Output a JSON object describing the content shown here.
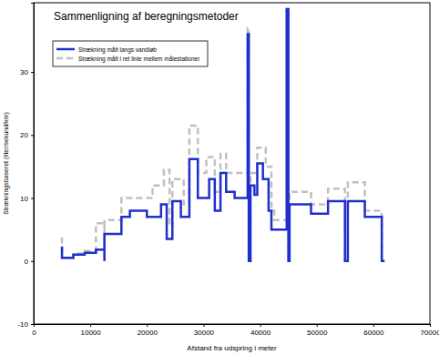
{
  "chart_data": {
    "type": "line",
    "title": "Sammenligning af beregningsmetoder",
    "x_label": "Afstand fra udspring i meter",
    "y_label": "Strækningsbaseret (liter/sekund/km)",
    "xlim": [
      0,
      70000
    ],
    "xticks": [
      0,
      10000,
      20000,
      30000,
      40000,
      50000,
      60000,
      70000
    ],
    "ylim": [
      -10,
      41
    ],
    "yticks": [
      -10,
      0,
      10,
      20,
      30
    ],
    "grid": false,
    "legend": "upper left",
    "series": [
      {
        "name": "Strækning målt langs vandløb",
        "color": "#1f2fcc",
        "line_style": "solid",
        "x": [
          5000,
          5000,
          7000,
          7000,
          9000,
          9000,
          11000,
          11000,
          12500,
          12500,
          12500,
          15500,
          15500,
          17000,
          17000,
          20000,
          20000,
          22500,
          22500,
          23500,
          23500,
          24500,
          24500,
          26000,
          26000,
          27500,
          27500,
          29000,
          29000,
          31000,
          31000,
          32000,
          32000,
          33000,
          33000,
          34000,
          34000,
          35500,
          35500,
          37800,
          37800,
          38000,
          38000,
          38300,
          38300,
          39000,
          39000,
          39500,
          39500,
          40500,
          40500,
          41500,
          41500,
          42000,
          42000,
          44700,
          44700,
          45000,
          45000,
          45200,
          45200,
          49000,
          49000,
          52000,
          52000,
          55000,
          55000,
          55500,
          55500,
          58500,
          58500,
          61500,
          61500,
          62000
        ],
        "values": [
          2.3,
          0.5,
          0.5,
          1.0,
          1.0,
          1.3,
          1.3,
          1.8,
          1.8,
          0,
          4.3,
          4.3,
          7,
          7,
          8,
          8,
          7,
          7,
          9,
          9,
          3.5,
          3.5,
          9.5,
          9.5,
          7,
          7,
          16.2,
          16.2,
          10,
          10,
          13,
          13,
          8,
          8,
          14,
          14,
          11,
          11,
          10,
          10,
          36,
          36,
          0,
          0,
          12,
          12,
          10.5,
          10.5,
          15.5,
          15.5,
          13,
          13,
          8,
          8,
          5,
          5,
          40,
          40,
          0,
          0,
          9,
          9,
          7.5,
          7.5,
          9.5,
          9.5,
          0,
          0,
          9.5,
          9.5,
          7,
          7,
          0,
          0
        ]
      },
      {
        "name": "Strækning målt i ret linie mellem målestationer",
        "color": "#c0c0c0",
        "line_style": "dashed",
        "x": [
          5000,
          5000,
          7000,
          7000,
          9000,
          9000,
          11000,
          11000,
          12500,
          12500,
          12500,
          15500,
          15500,
          21000,
          21000,
          23000,
          23000,
          24000,
          24000,
          24500,
          24500,
          26500,
          26500,
          27500,
          27500,
          29000,
          29000,
          30500,
          30500,
          32000,
          32000,
          33000,
          33000,
          34000,
          34000,
          37800,
          37800,
          38000,
          38000,
          38300,
          38300,
          39500,
          39500,
          41000,
          41000,
          42000,
          42000,
          42500,
          42500,
          44700,
          44700,
          45000,
          45000,
          45200,
          45200,
          49000,
          49000,
          52000,
          52000,
          55000,
          55000,
          55500,
          55500,
          58500,
          58500,
          61500,
          61500,
          62000
        ],
        "values": [
          3.8,
          0.5,
          0.5,
          1.2,
          1.2,
          1.6,
          1.6,
          6,
          6,
          0,
          6.5,
          6.5,
          10,
          10,
          12,
          12,
          14.5,
          14.5,
          5.5,
          5.5,
          13,
          13,
          9,
          9,
          21.5,
          21.5,
          14,
          14,
          16.5,
          16.5,
          11,
          11,
          17,
          17,
          14,
          14,
          37,
          37,
          0,
          0,
          14,
          14,
          18,
          18,
          15,
          15,
          8,
          8,
          6.5,
          6.5,
          40,
          40,
          0,
          0,
          11,
          11,
          9,
          9,
          11.5,
          11.5,
          0,
          0,
          12.5,
          12.5,
          8,
          8,
          0,
          0
        ]
      }
    ]
  }
}
